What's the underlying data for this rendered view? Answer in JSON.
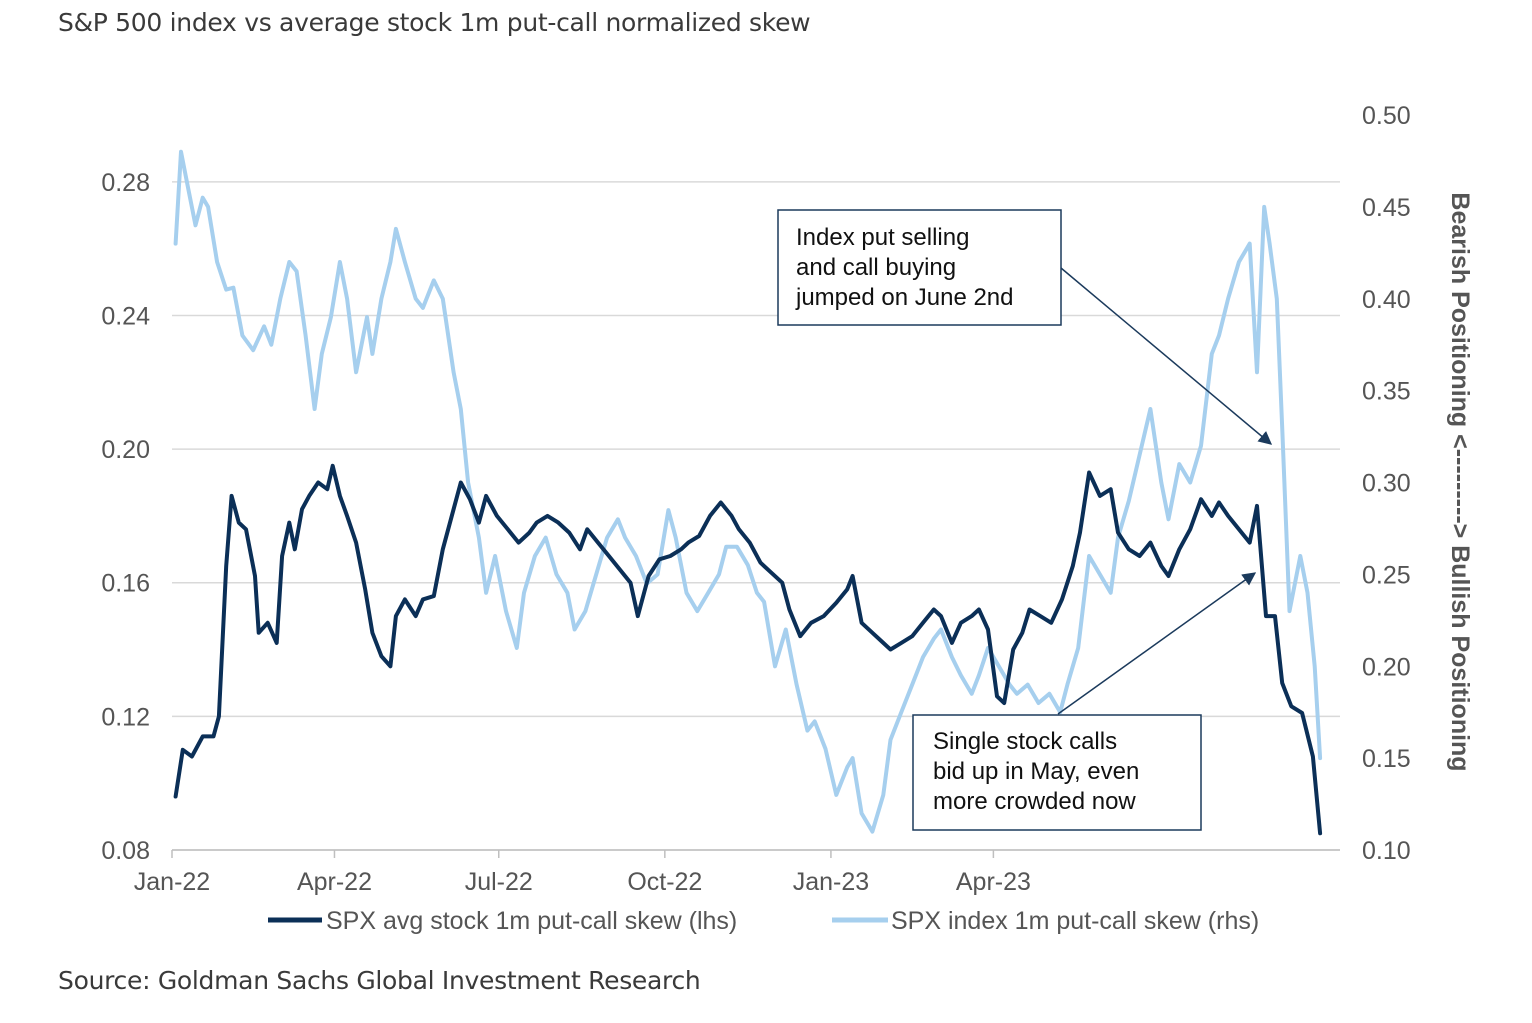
{
  "subtitle": "S&P 500 index vs average stock 1m put-call normalized skew",
  "source": "Source: Goldman Sachs Global Investment Research",
  "chart_data": {
    "type": "line",
    "x_ticks": [
      "Jan-22",
      "Apr-22",
      "Jul-22",
      "Oct-22",
      "Jan-23",
      "Apr-23"
    ],
    "y_left": {
      "min": 0.08,
      "max": 0.3,
      "ticks": [
        "0.28",
        "0.24",
        "0.20",
        "0.16",
        "0.12",
        "0.08"
      ]
    },
    "y_right": {
      "min": 0.1,
      "max": 0.5,
      "ticks": [
        "0.50",
        "0.45",
        "0.40",
        "0.35",
        "0.30",
        "0.25",
        "0.20",
        "0.15",
        "0.10"
      ]
    },
    "right_axis_label": "Bearish Positioning <---------> Bullish Positioning",
    "grid": true,
    "legend_position": "bottom",
    "series": [
      {
        "name": "SPX avg stock 1m put-call skew (lhs)",
        "axis": "left",
        "color": "#0b2f57",
        "points": [
          [
            "2022-01-03",
            0.096
          ],
          [
            "2022-01-07",
            0.11
          ],
          [
            "2022-01-12",
            0.108
          ],
          [
            "2022-01-18",
            0.114
          ],
          [
            "2022-01-24",
            0.114
          ],
          [
            "2022-01-27",
            0.12
          ],
          [
            "2022-01-31",
            0.165
          ],
          [
            "2022-02-03",
            0.186
          ],
          [
            "2022-02-07",
            0.178
          ],
          [
            "2022-02-11",
            0.176
          ],
          [
            "2022-02-16",
            0.162
          ],
          [
            "2022-02-18",
            0.145
          ],
          [
            "2022-02-23",
            0.148
          ],
          [
            "2022-02-28",
            0.142
          ],
          [
            "2022-03-03",
            0.168
          ],
          [
            "2022-03-07",
            0.178
          ],
          [
            "2022-03-10",
            0.17
          ],
          [
            "2022-03-14",
            0.182
          ],
          [
            "2022-03-18",
            0.186
          ],
          [
            "2022-03-23",
            0.19
          ],
          [
            "2022-03-28",
            0.188
          ],
          [
            "2022-03-31",
            0.195
          ],
          [
            "2022-04-04",
            0.186
          ],
          [
            "2022-04-08",
            0.18
          ],
          [
            "2022-04-13",
            0.172
          ],
          [
            "2022-04-18",
            0.158
          ],
          [
            "2022-04-22",
            0.145
          ],
          [
            "2022-04-27",
            0.138
          ],
          [
            "2022-05-02",
            0.135
          ],
          [
            "2022-05-05",
            0.15
          ],
          [
            "2022-05-10",
            0.155
          ],
          [
            "2022-05-16",
            0.15
          ],
          [
            "2022-05-20",
            0.155
          ],
          [
            "2022-05-26",
            0.156
          ],
          [
            "2022-05-31",
            0.17
          ],
          [
            "2022-06-06",
            0.182
          ],
          [
            "2022-06-10",
            0.19
          ],
          [
            "2022-06-15",
            0.185
          ],
          [
            "2022-06-20",
            0.178
          ],
          [
            "2022-06-24",
            0.186
          ],
          [
            "2022-06-30",
            0.18
          ],
          [
            "2022-07-06",
            0.176
          ],
          [
            "2022-07-12",
            0.172
          ],
          [
            "2022-07-18",
            0.175
          ],
          [
            "2022-07-22",
            0.178
          ],
          [
            "2022-07-28",
            0.18
          ],
          [
            "2022-08-03",
            0.178
          ],
          [
            "2022-08-09",
            0.175
          ],
          [
            "2022-08-15",
            0.17
          ],
          [
            "2022-08-19",
            0.176
          ],
          [
            "2022-08-25",
            0.172
          ],
          [
            "2022-08-31",
            0.168
          ],
          [
            "2022-09-06",
            0.164
          ],
          [
            "2022-09-12",
            0.16
          ],
          [
            "2022-09-16",
            0.15
          ],
          [
            "2022-09-22",
            0.162
          ],
          [
            "2022-09-28",
            0.167
          ],
          [
            "2022-10-04",
            0.168
          ],
          [
            "2022-10-10",
            0.17
          ],
          [
            "2022-10-14",
            0.172
          ],
          [
            "2022-10-20",
            0.174
          ],
          [
            "2022-10-26",
            0.18
          ],
          [
            "2022-11-01",
            0.184
          ],
          [
            "2022-11-07",
            0.18
          ],
          [
            "2022-11-11",
            0.176
          ],
          [
            "2022-11-17",
            0.172
          ],
          [
            "2022-11-23",
            0.166
          ],
          [
            "2022-11-29",
            0.163
          ],
          [
            "2022-12-05",
            0.16
          ],
          [
            "2022-12-09",
            0.152
          ],
          [
            "2022-12-15",
            0.144
          ],
          [
            "2022-12-21",
            0.148
          ],
          [
            "2022-12-28",
            0.15
          ],
          [
            "2023-01-04",
            0.154
          ],
          [
            "2023-01-10",
            0.158
          ],
          [
            "2023-01-13",
            0.162
          ],
          [
            "2023-01-18",
            0.148
          ],
          [
            "2023-01-24",
            0.145
          ],
          [
            "2023-01-30",
            0.142
          ],
          [
            "2023-02-03",
            0.14
          ],
          [
            "2023-02-09",
            0.142
          ],
          [
            "2023-02-15",
            0.144
          ],
          [
            "2023-02-21",
            0.148
          ],
          [
            "2023-02-27",
            0.152
          ],
          [
            "2023-03-03",
            0.15
          ],
          [
            "2023-03-09",
            0.142
          ],
          [
            "2023-03-14",
            0.148
          ],
          [
            "2023-03-20",
            0.15
          ],
          [
            "2023-03-24",
            0.152
          ],
          [
            "2023-03-29",
            0.146
          ],
          [
            "2023-04-03",
            0.126
          ],
          [
            "2023-04-07",
            0.124
          ],
          [
            "2023-04-12",
            0.14
          ],
          [
            "2023-04-17",
            0.145
          ],
          [
            "2023-04-21",
            0.152
          ],
          [
            "2023-04-27",
            0.15
          ],
          [
            "2023-05-03",
            0.148
          ],
          [
            "2023-05-09",
            0.155
          ],
          [
            "2023-05-15",
            0.165
          ],
          [
            "2023-05-19",
            0.175
          ],
          [
            "2023-05-24",
            0.193
          ],
          [
            "2023-05-30",
            0.186
          ],
          [
            "2023-06-05",
            0.188
          ],
          [
            "2023-06-09",
            0.175
          ],
          [
            "2023-06-15",
            0.17
          ],
          [
            "2023-06-21",
            0.168
          ],
          [
            "2023-06-27",
            0.172
          ],
          [
            "2023-07-03",
            0.165
          ],
          [
            "2023-07-07",
            0.162
          ],
          [
            "2023-07-13",
            0.17
          ],
          [
            "2023-07-19",
            0.176
          ],
          [
            "2023-07-25",
            0.185
          ],
          [
            "2023-07-31",
            0.18
          ],
          [
            "2023-08-04",
            0.184
          ],
          [
            "2023-08-09",
            0.18
          ],
          [
            "2023-08-15",
            0.176
          ],
          [
            "2023-08-21",
            0.172
          ],
          [
            "2023-08-25",
            0.183
          ],
          [
            "2023-08-30",
            0.15
          ],
          [
            "2023-09-04",
            0.15
          ],
          [
            "2023-09-08",
            0.13
          ],
          [
            "2023-09-13",
            0.123
          ],
          [
            "2023-09-19",
            0.121
          ],
          [
            "2023-09-25",
            0.108
          ],
          [
            "2023-09-29",
            0.085
          ]
        ]
      },
      {
        "name": "SPX index 1m put-call skew (rhs)",
        "axis": "right",
        "color": "#a6cfee",
        "points": [
          [
            "2022-01-03",
            0.43
          ],
          [
            "2022-01-06",
            0.48
          ],
          [
            "2022-01-10",
            0.46
          ],
          [
            "2022-01-14",
            0.44
          ],
          [
            "2022-01-18",
            0.455
          ],
          [
            "2022-01-21",
            0.45
          ],
          [
            "2022-01-26",
            0.42
          ],
          [
            "2022-01-31",
            0.405
          ],
          [
            "2022-02-04",
            0.406
          ],
          [
            "2022-02-09",
            0.38
          ],
          [
            "2022-02-15",
            0.372
          ],
          [
            "2022-02-21",
            0.385
          ],
          [
            "2022-02-25",
            0.375
          ],
          [
            "2022-03-02",
            0.4
          ],
          [
            "2022-03-07",
            0.42
          ],
          [
            "2022-03-11",
            0.415
          ],
          [
            "2022-03-16",
            0.38
          ],
          [
            "2022-03-21",
            0.34
          ],
          [
            "2022-03-25",
            0.37
          ],
          [
            "2022-03-30",
            0.39
          ],
          [
            "2022-04-04",
            0.42
          ],
          [
            "2022-04-08",
            0.4
          ],
          [
            "2022-04-13",
            0.36
          ],
          [
            "2022-04-19",
            0.39
          ],
          [
            "2022-04-22",
            0.37
          ],
          [
            "2022-04-27",
            0.4
          ],
          [
            "2022-05-02",
            0.42
          ],
          [
            "2022-05-05",
            0.438
          ],
          [
            "2022-05-10",
            0.42
          ],
          [
            "2022-05-16",
            0.4
          ],
          [
            "2022-05-20",
            0.395
          ],
          [
            "2022-05-26",
            0.41
          ],
          [
            "2022-05-31",
            0.4
          ],
          [
            "2022-06-06",
            0.36
          ],
          [
            "2022-06-10",
            0.34
          ],
          [
            "2022-06-14",
            0.3
          ],
          [
            "2022-06-20",
            0.27
          ],
          [
            "2022-06-24",
            0.24
          ],
          [
            "2022-06-29",
            0.26
          ],
          [
            "2022-07-05",
            0.23
          ],
          [
            "2022-07-11",
            0.21
          ],
          [
            "2022-07-15",
            0.24
          ],
          [
            "2022-07-21",
            0.26
          ],
          [
            "2022-07-27",
            0.27
          ],
          [
            "2022-08-02",
            0.25
          ],
          [
            "2022-08-08",
            0.24
          ],
          [
            "2022-08-12",
            0.22
          ],
          [
            "2022-08-18",
            0.23
          ],
          [
            "2022-08-24",
            0.25
          ],
          [
            "2022-08-30",
            0.27
          ],
          [
            "2022-09-05",
            0.28
          ],
          [
            "2022-09-09",
            0.27
          ],
          [
            "2022-09-15",
            0.26
          ],
          [
            "2022-09-21",
            0.245
          ],
          [
            "2022-09-27",
            0.25
          ],
          [
            "2022-10-03",
            0.285
          ],
          [
            "2022-10-07",
            0.27
          ],
          [
            "2022-10-13",
            0.24
          ],
          [
            "2022-10-19",
            0.23
          ],
          [
            "2022-10-25",
            0.24
          ],
          [
            "2022-10-31",
            0.25
          ],
          [
            "2022-11-04",
            0.265
          ],
          [
            "2022-11-10",
            0.265
          ],
          [
            "2022-11-16",
            0.255
          ],
          [
            "2022-11-21",
            0.24
          ],
          [
            "2022-11-25",
            0.235
          ],
          [
            "2022-12-01",
            0.2
          ],
          [
            "2022-12-07",
            0.22
          ],
          [
            "2022-12-13",
            0.19
          ],
          [
            "2022-12-19",
            0.165
          ],
          [
            "2022-12-23",
            0.17
          ],
          [
            "2022-12-29",
            0.155
          ],
          [
            "2023-01-04",
            0.13
          ],
          [
            "2023-01-10",
            0.145
          ],
          [
            "2023-01-13",
            0.15
          ],
          [
            "2023-01-18",
            0.12
          ],
          [
            "2023-01-24",
            0.11
          ],
          [
            "2023-01-30",
            0.13
          ],
          [
            "2023-02-03",
            0.16
          ],
          [
            "2023-02-09",
            0.175
          ],
          [
            "2023-02-15",
            0.19
          ],
          [
            "2023-02-21",
            0.205
          ],
          [
            "2023-02-27",
            0.215
          ],
          [
            "2023-03-03",
            0.22
          ],
          [
            "2023-03-09",
            0.205
          ],
          [
            "2023-03-14",
            0.195
          ],
          [
            "2023-03-20",
            0.185
          ],
          [
            "2023-03-24",
            0.195
          ],
          [
            "2023-03-29",
            0.21
          ],
          [
            "2023-04-04",
            0.2
          ],
          [
            "2023-04-10",
            0.19
          ],
          [
            "2023-04-14",
            0.185
          ],
          [
            "2023-04-20",
            0.19
          ],
          [
            "2023-04-26",
            0.18
          ],
          [
            "2023-05-02",
            0.185
          ],
          [
            "2023-05-08",
            0.175
          ],
          [
            "2023-05-12",
            0.19
          ],
          [
            "2023-05-18",
            0.21
          ],
          [
            "2023-05-24",
            0.26
          ],
          [
            "2023-05-30",
            0.25
          ],
          [
            "2023-06-05",
            0.24
          ],
          [
            "2023-06-09",
            0.27
          ],
          [
            "2023-06-15",
            0.29
          ],
          [
            "2023-06-21",
            0.315
          ],
          [
            "2023-06-27",
            0.34
          ],
          [
            "2023-07-03",
            0.3
          ],
          [
            "2023-07-07",
            0.28
          ],
          [
            "2023-07-13",
            0.31
          ],
          [
            "2023-07-19",
            0.3
          ],
          [
            "2023-07-25",
            0.32
          ],
          [
            "2023-07-31",
            0.37
          ],
          [
            "2023-08-04",
            0.38
          ],
          [
            "2023-08-09",
            0.4
          ],
          [
            "2023-08-15",
            0.42
          ],
          [
            "2023-08-21",
            0.43
          ],
          [
            "2023-08-25",
            0.36
          ],
          [
            "2023-08-29",
            0.45
          ],
          [
            "2023-09-01",
            0.43
          ],
          [
            "2023-09-05",
            0.4
          ],
          [
            "2023-09-08",
            0.33
          ],
          [
            "2023-09-12",
            0.23
          ],
          [
            "2023-09-18",
            0.26
          ],
          [
            "2023-09-22",
            0.24
          ],
          [
            "2023-09-26",
            0.2
          ],
          [
            "2023-09-29",
            0.15
          ]
        ]
      }
    ],
    "annotations": [
      {
        "lines": [
          "Index put selling",
          "and call buying",
          "jumped on June 2nd"
        ]
      },
      {
        "lines": [
          "Single stock calls",
          "bid up in May, even",
          "more crowded now"
        ]
      }
    ]
  }
}
